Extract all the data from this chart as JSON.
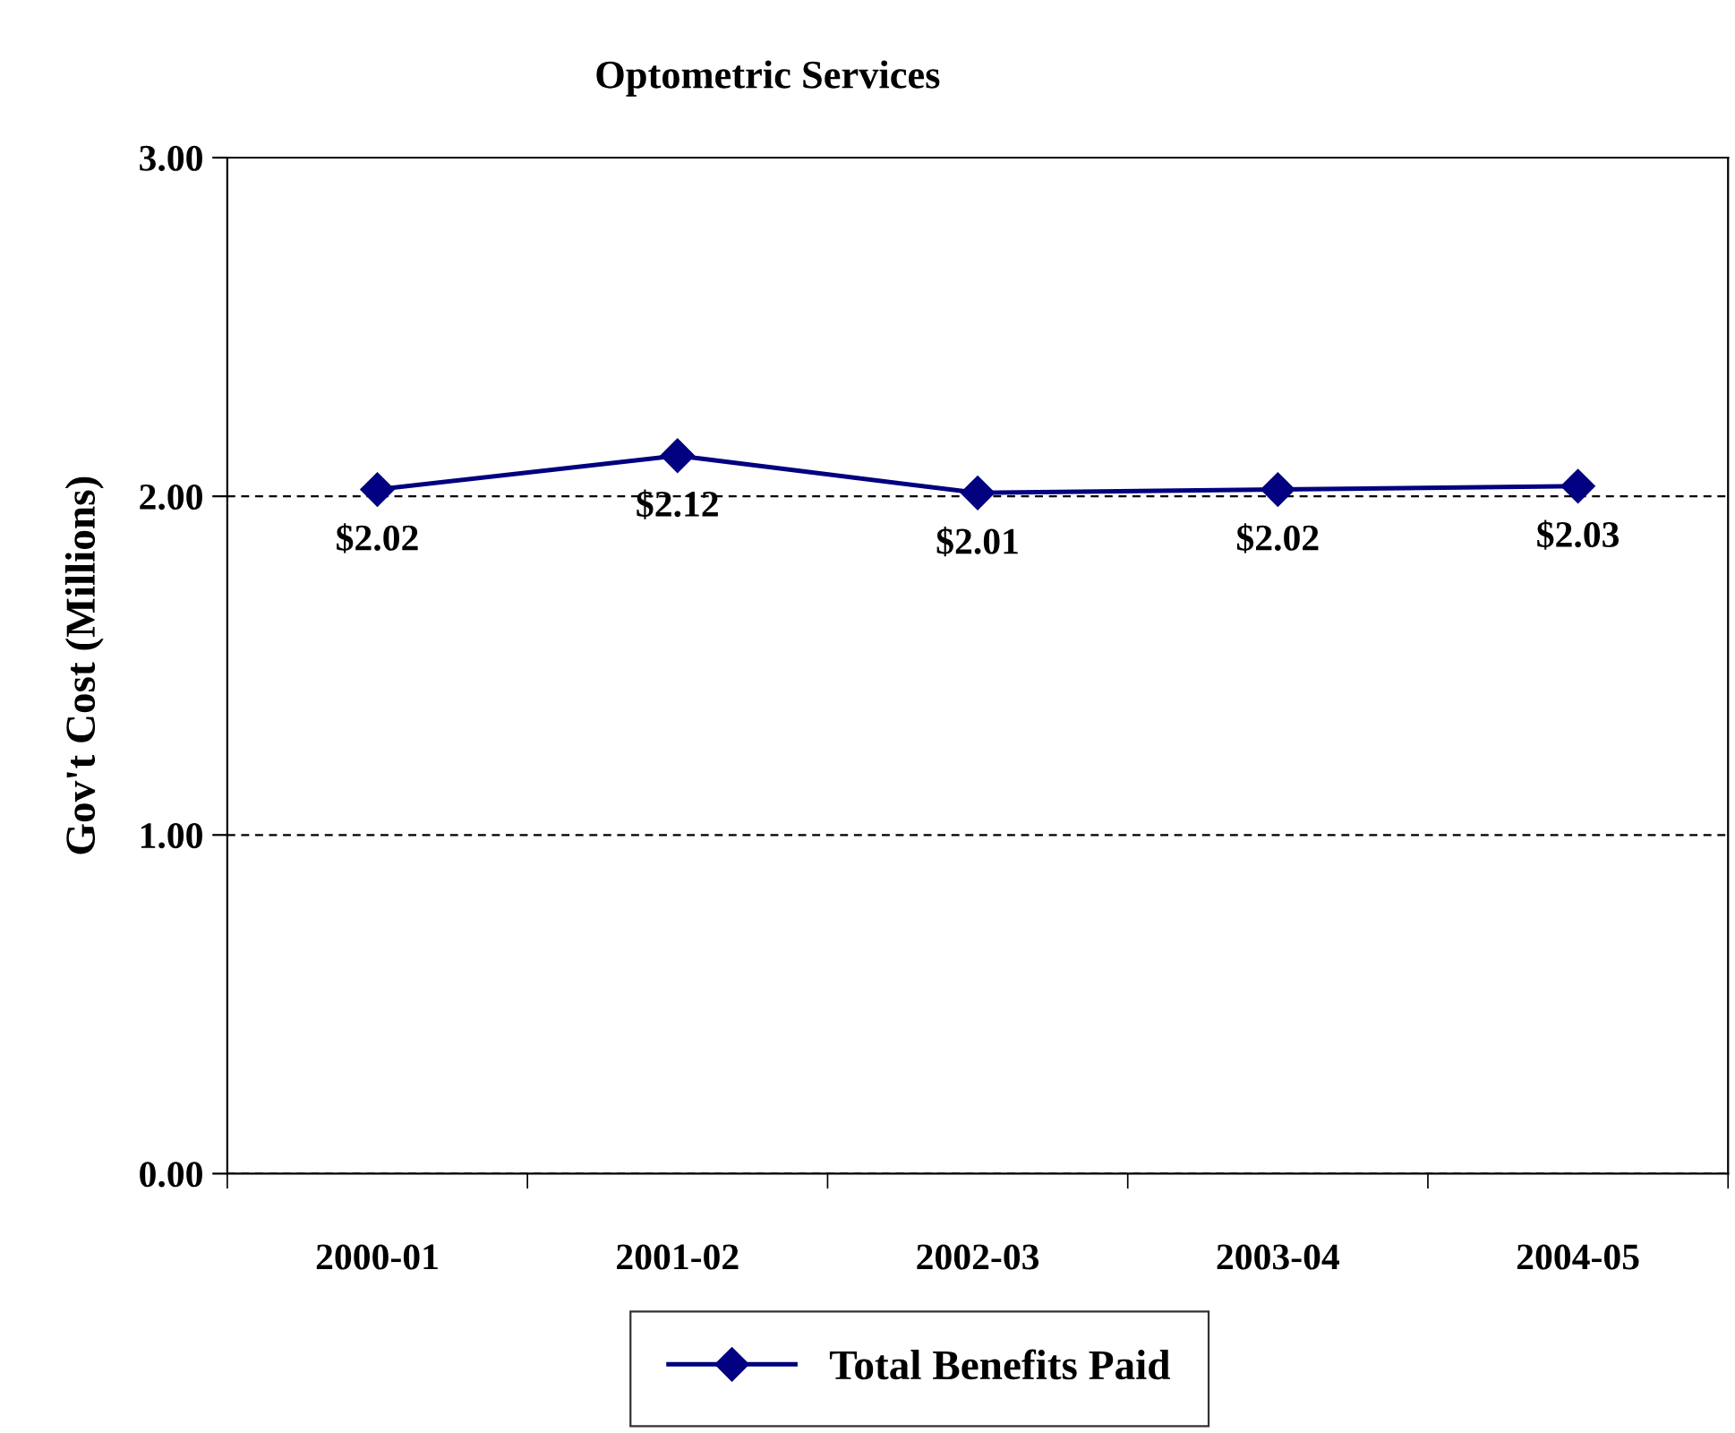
{
  "chart_data": {
    "type": "line",
    "title": "Optometric Services",
    "ylabel": "Gov't Cost (Millions)",
    "categories": [
      "2000-01",
      "2001-02",
      "2002-03",
      "2003-04",
      "2004-05"
    ],
    "series": [
      {
        "name": "Total Benefits Paid",
        "color": "#000080",
        "values": [
          2.02,
          2.12,
          2.01,
          2.02,
          2.03
        ],
        "value_labels": [
          "$2.02",
          "$2.12",
          "$2.01",
          "$2.02",
          "$2.03"
        ]
      }
    ],
    "ylim": [
      0,
      3
    ],
    "yticks": [
      {
        "value": 0,
        "label": "0.00"
      },
      {
        "value": 1,
        "label": "1.00"
      },
      {
        "value": 2,
        "label": "2.00"
      },
      {
        "value": 3,
        "label": "3.00"
      }
    ],
    "grid": "y",
    "legend": "bottom",
    "marker": "diamond",
    "line_style": "solid"
  }
}
